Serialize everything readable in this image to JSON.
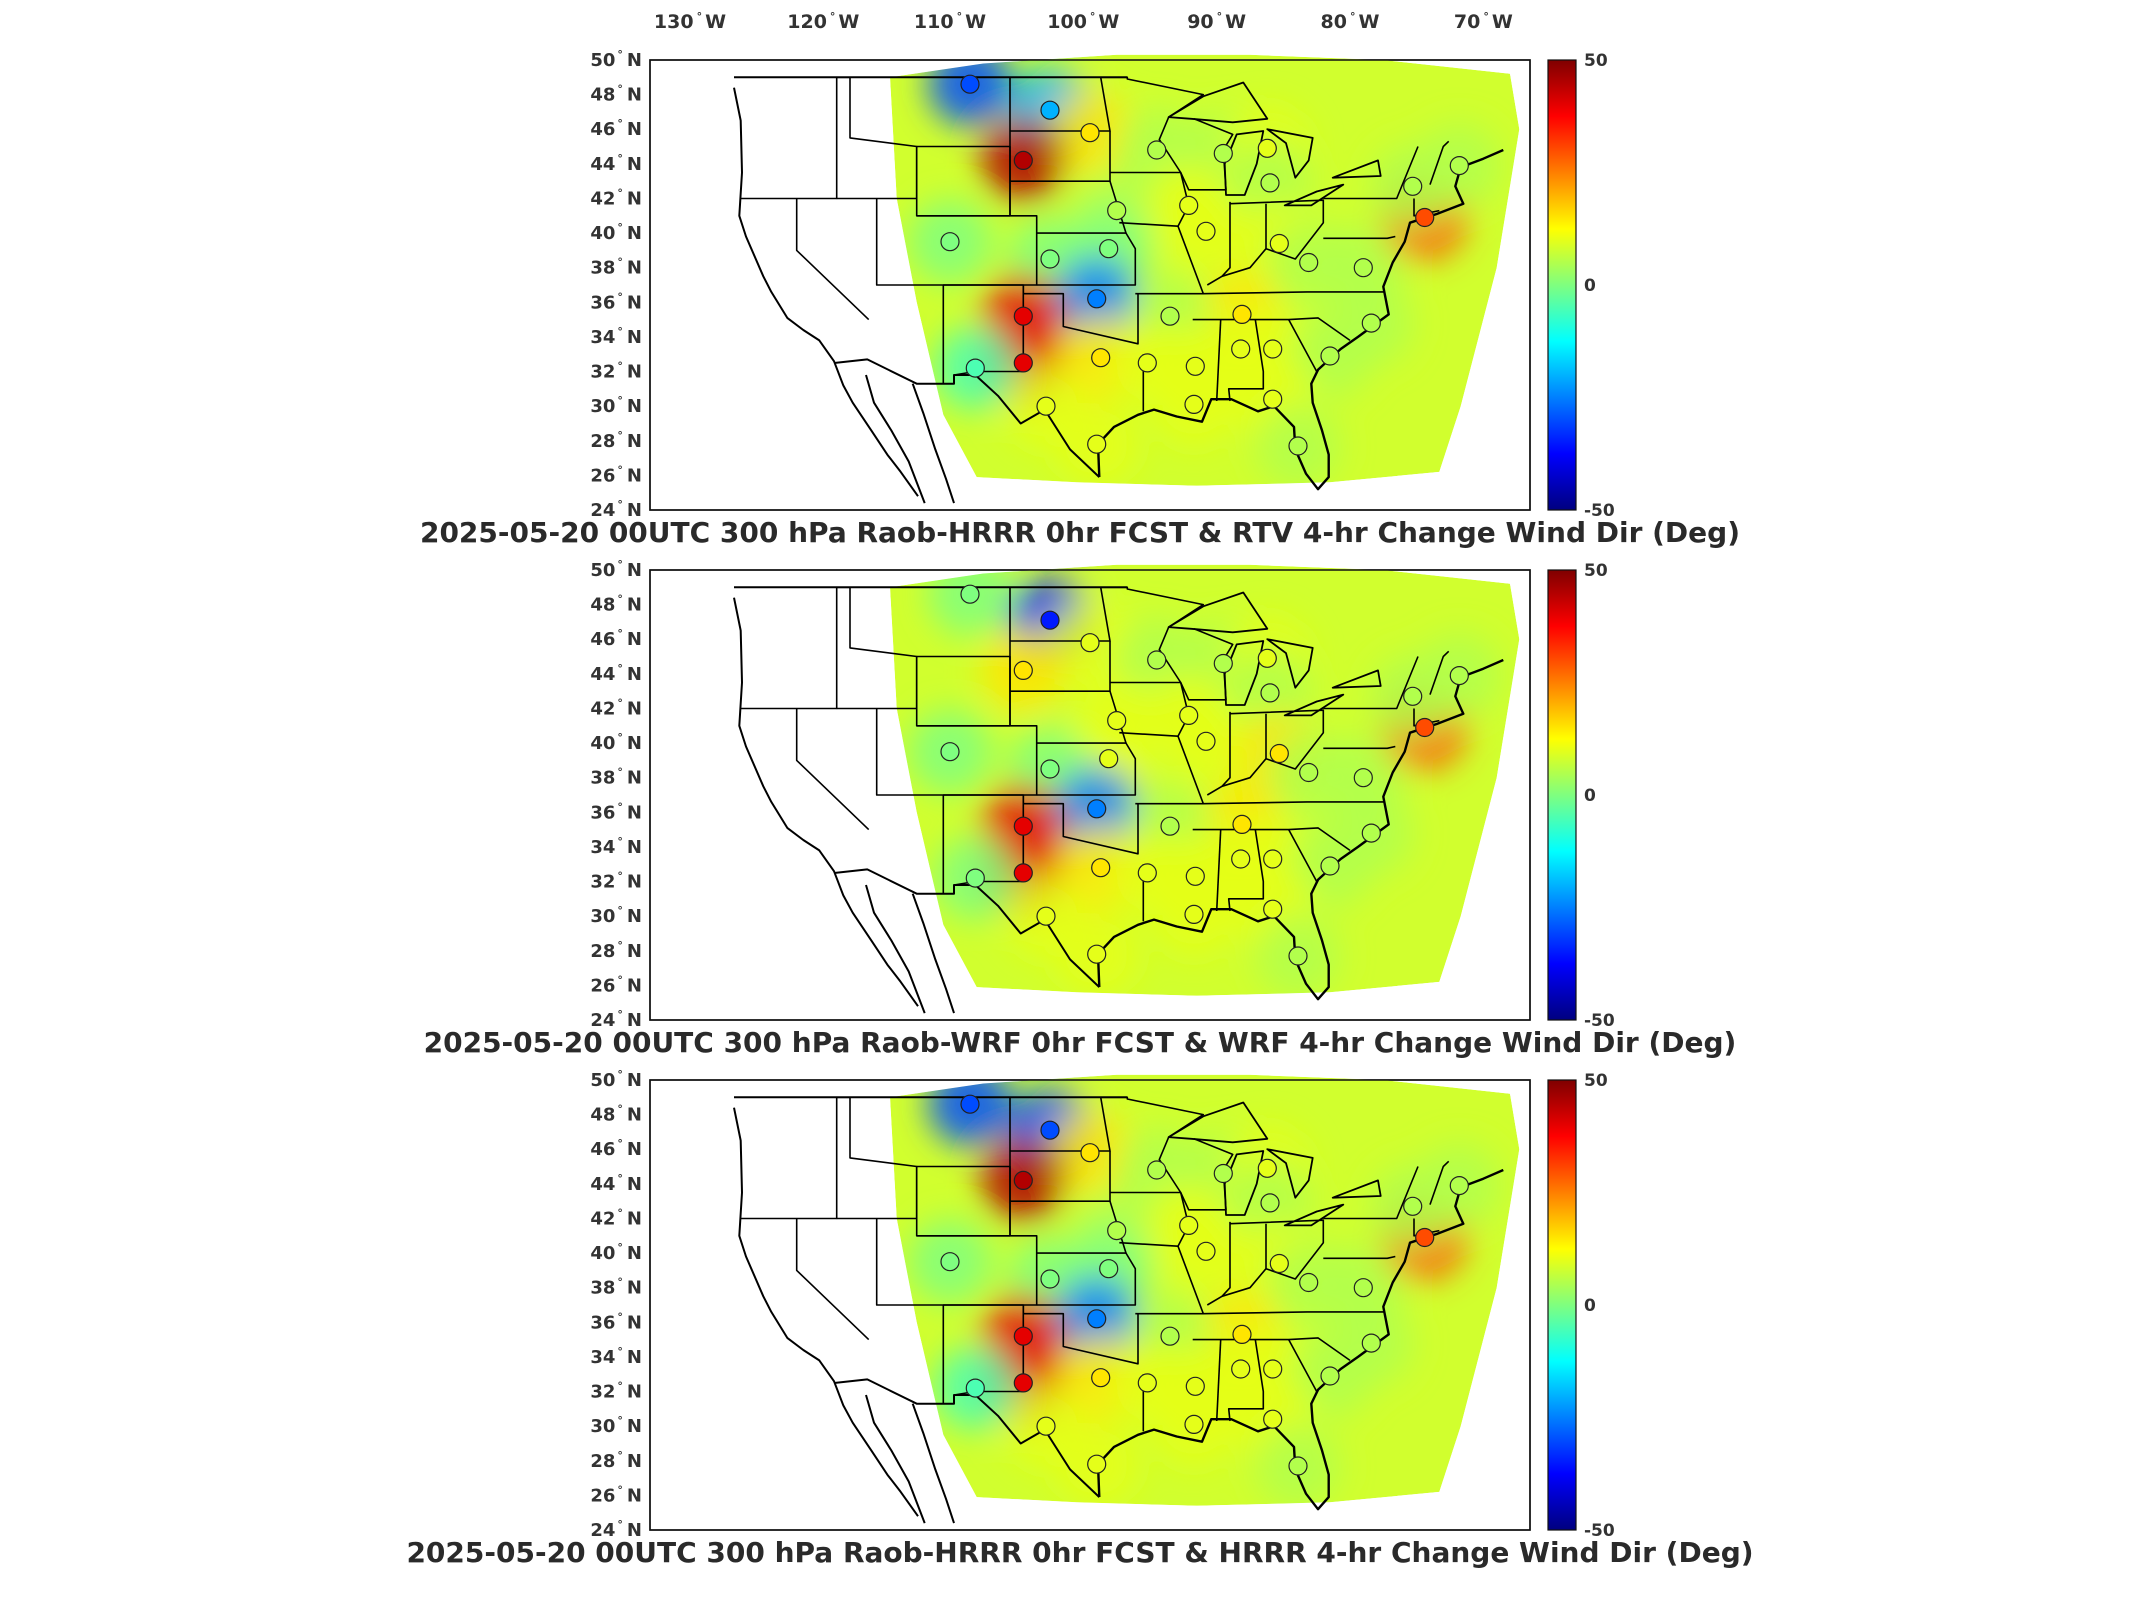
{
  "lon_labels": [
    {
      "deg": "130",
      "hemi": "W"
    },
    {
      "deg": "120",
      "hemi": "W"
    },
    {
      "deg": "110",
      "hemi": "W"
    },
    {
      "deg": "100",
      "hemi": "W"
    },
    {
      "deg": "90",
      "hemi": "W"
    },
    {
      "deg": "80",
      "hemi": "W"
    },
    {
      "deg": "70",
      "hemi": "W"
    }
  ],
  "lat_labels": [
    {
      "deg": "50",
      "hemi": "N"
    },
    {
      "deg": "48",
      "hemi": "N"
    },
    {
      "deg": "46",
      "hemi": "N"
    },
    {
      "deg": "44",
      "hemi": "N"
    },
    {
      "deg": "42",
      "hemi": "N"
    },
    {
      "deg": "40",
      "hemi": "N"
    },
    {
      "deg": "38",
      "hemi": "N"
    },
    {
      "deg": "36",
      "hemi": "N"
    },
    {
      "deg": "34",
      "hemi": "N"
    },
    {
      "deg": "32",
      "hemi": "N"
    },
    {
      "deg": "30",
      "hemi": "N"
    },
    {
      "deg": "28",
      "hemi": "N"
    },
    {
      "deg": "26",
      "hemi": "N"
    },
    {
      "deg": "24",
      "hemi": "N"
    }
  ],
  "colorbar": {
    "max": "50",
    "mid": "0",
    "min": "-50",
    "colors": [
      "#00007f",
      "#0000ff",
      "#007fff",
      "#00ffff",
      "#7fff7f",
      "#ffff00",
      "#ff7f00",
      "#ff0000",
      "#7f0000"
    ]
  },
  "panels": [
    {
      "title": "2025-05-20 00UTC 300 hPa Raob-HRRR 0hr FCST & RTV 4-hr Change Wind Dir (Deg)"
    },
    {
      "title": "2025-05-20 00UTC 300 hPa Raob-WRF 0hr FCST & WRF 4-hr Change Wind Dir (Deg)"
    },
    {
      "title": "2025-05-20 00UTC 300 hPa Raob-HRRR 0hr FCST & HRRR 4-hr Change Wind Dir (Deg)"
    }
  ],
  "map_data": {
    "type": "contour map with station markers",
    "variable": "Wind Dir (Deg)",
    "level": "300 hPa",
    "lon_range": [
      -131,
      -65
    ],
    "lat_range": [
      24,
      50
    ],
    "color_range": [
      -50,
      50
    ],
    "stations": [
      {
        "lat": 48.6,
        "lon": -107,
        "values": [
          -30,
          0,
          -30
        ]
      },
      {
        "lat": 47.1,
        "lon": -101,
        "values": [
          -20,
          -35,
          -30
        ]
      },
      {
        "lat": 45.8,
        "lon": -98,
        "values": [
          15,
          10,
          15
        ]
      },
      {
        "lat": 44.2,
        "lon": -103,
        "values": [
          45,
          15,
          45
        ]
      },
      {
        "lat": 44.8,
        "lon": -93,
        "values": [
          5,
          5,
          5
        ]
      },
      {
        "lat": 44.6,
        "lon": -88,
        "values": [
          5,
          5,
          5
        ]
      },
      {
        "lat": 44.9,
        "lon": -84.7,
        "values": [
          10,
          10,
          10
        ]
      },
      {
        "lat": 42.9,
        "lon": -84.5,
        "values": [
          5,
          5,
          5
        ]
      },
      {
        "lat": 41.3,
        "lon": -96,
        "values": [
          5,
          10,
          5
        ]
      },
      {
        "lat": 41.6,
        "lon": -90.6,
        "values": [
          10,
          10,
          10
        ]
      },
      {
        "lat": 40.1,
        "lon": -89.3,
        "values": [
          10,
          10,
          10
        ]
      },
      {
        "lat": 39.5,
        "lon": -108.5,
        "values": [
          0,
          0,
          0
        ]
      },
      {
        "lat": 39.1,
        "lon": -96.6,
        "values": [
          0,
          10,
          0
        ]
      },
      {
        "lat": 38.5,
        "lon": -101,
        "values": [
          0,
          0,
          0
        ]
      },
      {
        "lat": 39.4,
        "lon": -83.8,
        "values": [
          10,
          15,
          10
        ]
      },
      {
        "lat": 38.3,
        "lon": -81.6,
        "values": [
          5,
          5,
          5
        ]
      },
      {
        "lat": 38.0,
        "lon": -77.5,
        "values": [
          5,
          5,
          5
        ]
      },
      {
        "lat": 40.9,
        "lon": -72.9,
        "values": [
          30,
          30,
          30
        ]
      },
      {
        "lat": 42.7,
        "lon": -73.8,
        "values": [
          5,
          5,
          5
        ]
      },
      {
        "lat": 43.9,
        "lon": -70.3,
        "values": [
          5,
          5,
          5
        ]
      },
      {
        "lat": 36.2,
        "lon": -97.5,
        "values": [
          -25,
          -25,
          -25
        ]
      },
      {
        "lat": 35.2,
        "lon": -103,
        "values": [
          40,
          40,
          40
        ]
      },
      {
        "lat": 35.3,
        "lon": -86.6,
        "values": [
          15,
          15,
          15
        ]
      },
      {
        "lat": 35.2,
        "lon": -92,
        "values": [
          5,
          5,
          5
        ]
      },
      {
        "lat": 34.8,
        "lon": -76.9,
        "values": [
          5,
          5,
          5
        ]
      },
      {
        "lat": 32.5,
        "lon": -103,
        "values": [
          40,
          40,
          40
        ]
      },
      {
        "lat": 32.2,
        "lon": -106.6,
        "values": [
          -5,
          0,
          -5
        ]
      },
      {
        "lat": 32.8,
        "lon": -97.2,
        "values": [
          15,
          15,
          15
        ]
      },
      {
        "lat": 32.5,
        "lon": -93.7,
        "values": [
          10,
          10,
          10
        ]
      },
      {
        "lat": 32.3,
        "lon": -90.1,
        "values": [
          10,
          10,
          10
        ]
      },
      {
        "lat": 33.3,
        "lon": -86.7,
        "values": [
          10,
          10,
          10
        ]
      },
      {
        "lat": 33.3,
        "lon": -84.3,
        "values": [
          10,
          10,
          10
        ]
      },
      {
        "lat": 32.9,
        "lon": -80,
        "values": [
          5,
          5,
          5
        ]
      },
      {
        "lat": 30.0,
        "lon": -101.3,
        "values": [
          10,
          10,
          10
        ]
      },
      {
        "lat": 30.1,
        "lon": -90.2,
        "values": [
          10,
          10,
          10
        ]
      },
      {
        "lat": 30.4,
        "lon": -84.3,
        "values": [
          10,
          10,
          10
        ]
      },
      {
        "lat": 27.8,
        "lon": -97.5,
        "values": [
          10,
          10,
          10
        ]
      },
      {
        "lat": 27.7,
        "lon": -82.4,
        "values": [
          5,
          5,
          5
        ]
      }
    ]
  }
}
